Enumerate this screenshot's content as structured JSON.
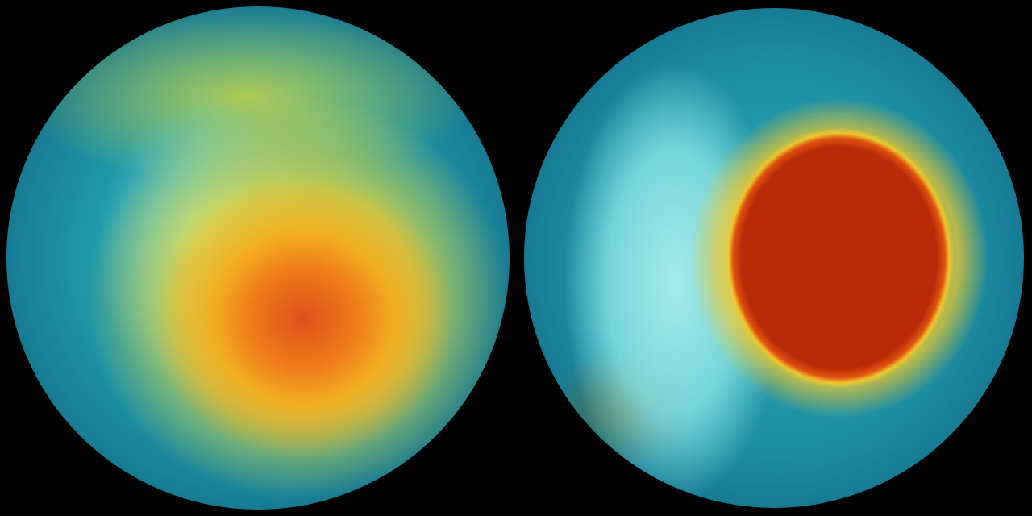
{
  "scene": {
    "globes": [
      {
        "view": "left",
        "hotspot_color": "#f07a18",
        "ocean_color": "#1e96a6"
      },
      {
        "view": "right",
        "hotspot_color": "#b82a08",
        "ocean_color": "#1c8ea2"
      }
    ],
    "background_color": "#000000"
  }
}
